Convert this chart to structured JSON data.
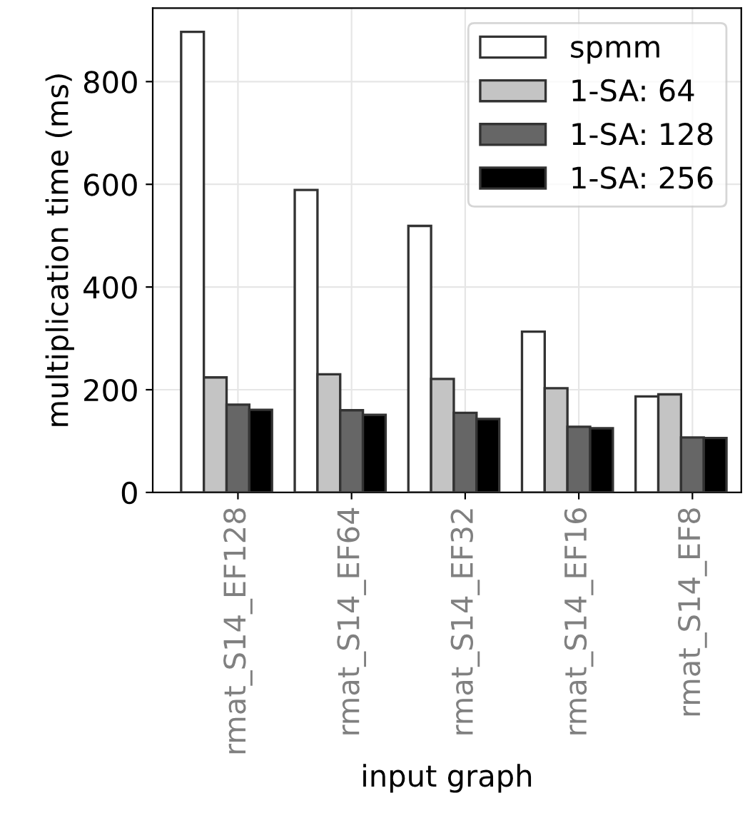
{
  "chart_data": {
    "type": "bar",
    "xlabel": "input graph",
    "ylabel": "multiplication time (ms)",
    "categories": [
      "rmat_S14_EF128",
      "rmat_S14_EF64",
      "rmat_S14_EF32",
      "rmat_S14_EF16",
      "rmat_S14_EF8"
    ],
    "series": [
      {
        "name": "spmm",
        "color": "#ffffff",
        "values": [
          897,
          589,
          519,
          313,
          187
        ]
      },
      {
        "name": "1-SA: 64",
        "color": "#c4c4c4",
        "values": [
          224,
          230,
          221,
          203,
          191
        ]
      },
      {
        "name": "1-SA: 128",
        "color": "#666666",
        "values": [
          171,
          160,
          155,
          128,
          107
        ]
      },
      {
        "name": "1-SA: 256",
        "color": "#000000",
        "values": [
          161,
          151,
          143,
          125,
          106
        ]
      }
    ],
    "ylim": [
      0,
      943
    ],
    "yticks": [
      0,
      200,
      400,
      600,
      800
    ],
    "grid": true,
    "legend": "top right"
  }
}
